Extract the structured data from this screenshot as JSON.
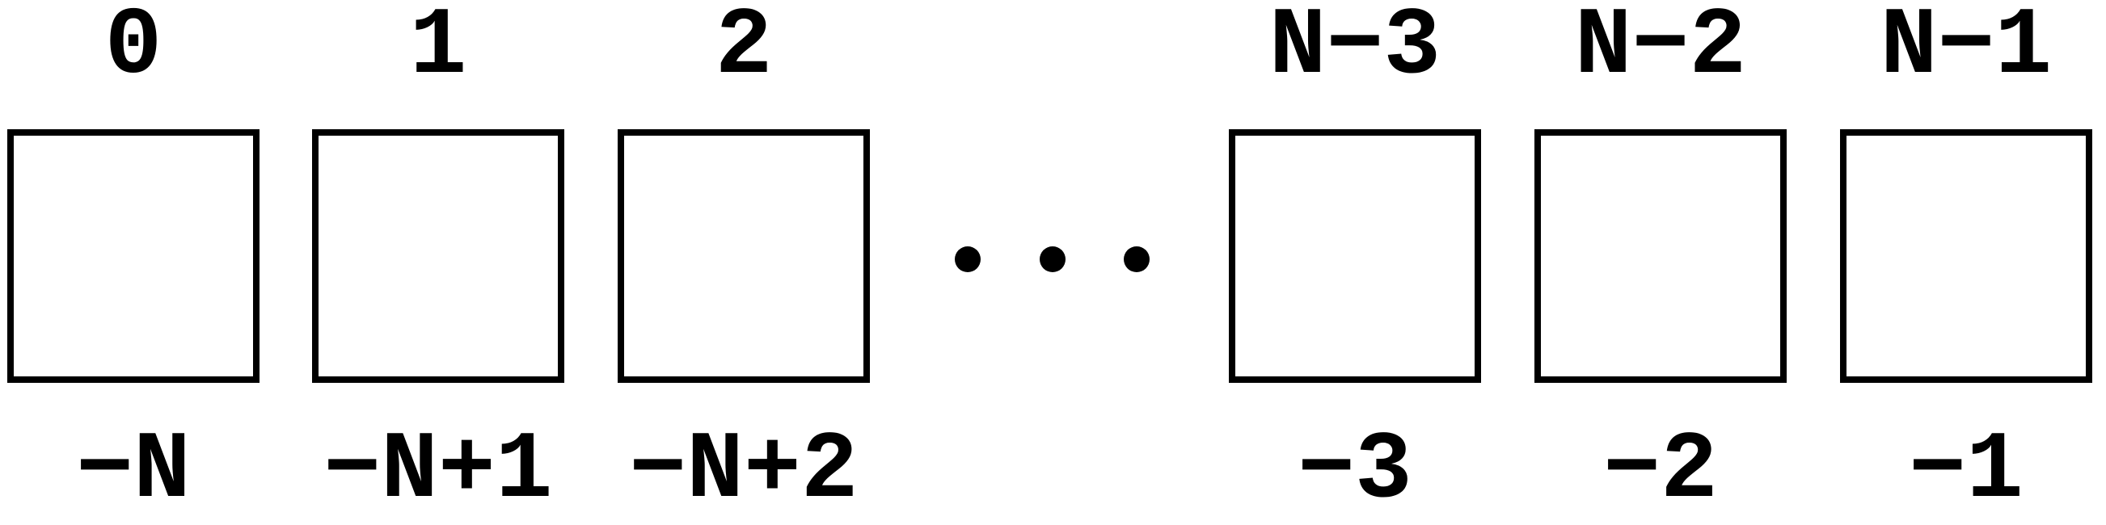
{
  "diagram": {
    "cells": [
      {
        "index": "0",
        "negative_index": "−N"
      },
      {
        "index": "1",
        "negative_index": "−N+1"
      },
      {
        "index": "2",
        "negative_index": "−N+2"
      },
      {
        "index": "N−3",
        "negative_index": "−3"
      },
      {
        "index": "N−2",
        "negative_index": "−2"
      },
      {
        "index": "N−1",
        "negative_index": "−1"
      }
    ],
    "ellipsis_dots": 3
  }
}
